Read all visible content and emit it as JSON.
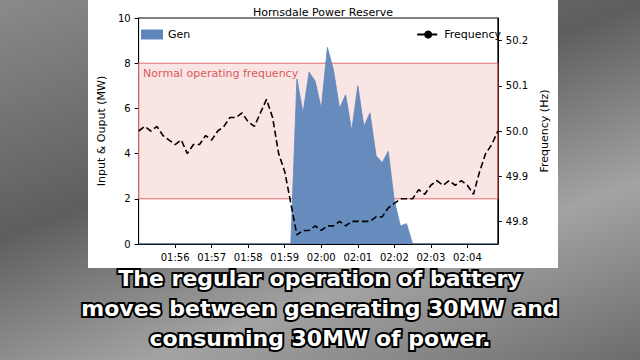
{
  "chart_data": {
    "type": "line",
    "title": "Hornsdale Power Reserve",
    "y_label": "Input & Ouput (MW)",
    "y2_label": "Frequency (Hz)",
    "categories": [
      null,
      null,
      null,
      null,
      null,
      null,
      "01:56",
      null,
      null,
      null,
      null,
      null,
      "01:57",
      null,
      null,
      null,
      null,
      null,
      "01:58",
      null,
      null,
      null,
      null,
      null,
      "01:59",
      null,
      null,
      null,
      null,
      null,
      "02:00",
      null,
      null,
      null,
      null,
      null,
      "02:01",
      null,
      null,
      null,
      null,
      null,
      "02:02",
      null,
      null,
      null,
      null,
      null,
      "02:03",
      null,
      null,
      null,
      null,
      null,
      "02:04",
      null,
      null,
      null,
      null,
      null
    ],
    "series": [
      {
        "name": "Gen",
        "type": "area",
        "color": "#5f86bb",
        "values": [
          0,
          0,
          0,
          0,
          0,
          0,
          0,
          0,
          0,
          0,
          0,
          0,
          0,
          0,
          0,
          0,
          0,
          0,
          0,
          0,
          0,
          0,
          0,
          0,
          0,
          0,
          7.3,
          5.8,
          7.6,
          7.2,
          6.0,
          8.7,
          7.7,
          6.0,
          6.6,
          5.0,
          7.0,
          5.2,
          5.8,
          3.9,
          3.6,
          4.1,
          1.9,
          0.8,
          0.9,
          0,
          0,
          0,
          0,
          0,
          0,
          0,
          0,
          0,
          0,
          0,
          0,
          0,
          0,
          0
        ]
      },
      {
        "name": "Frequency",
        "type": "line",
        "axis": "y2",
        "color": "#000000",
        "line_style": "dashed",
        "values": [
          50.0,
          50.01,
          50.0,
          50.01,
          49.99,
          49.98,
          49.97,
          49.98,
          49.95,
          49.97,
          49.97,
          49.99,
          49.98,
          50.0,
          50.01,
          50.03,
          50.03,
          50.04,
          50.02,
          50.01,
          50.04,
          50.07,
          50.03,
          49.95,
          49.91,
          49.84,
          49.77,
          49.78,
          49.78,
          49.79,
          49.78,
          49.79,
          49.79,
          49.8,
          49.79,
          49.8,
          49.8,
          49.8,
          49.8,
          49.81,
          49.81,
          49.83,
          49.84,
          49.85,
          49.85,
          49.85,
          49.87,
          49.86,
          49.88,
          49.89,
          49.88,
          49.89,
          49.88,
          49.89,
          49.88,
          49.86,
          49.91,
          49.95,
          49.97,
          50.0
        ]
      }
    ],
    "ylim": [
      0,
      10
    ],
    "yticks": [
      0,
      2,
      4,
      6,
      8,
      10
    ],
    "y2lim": [
      49.75,
      50.25
    ],
    "y2ticks": [
      49.8,
      49.9,
      {
        "value": 50.0,
        "label": "50.0"
      },
      50.1,
      50.2
    ],
    "annotations": [
      {
        "text": "Normal operating frequency",
        "axis": "y2",
        "range": [
          49.85,
          50.15
        ]
      }
    ],
    "caption_lines": [
      "The regular operation of battery",
      "moves between generating 30MW and",
      "consuming 30MW of power."
    ],
    "grid": false,
    "legend": "top"
  }
}
